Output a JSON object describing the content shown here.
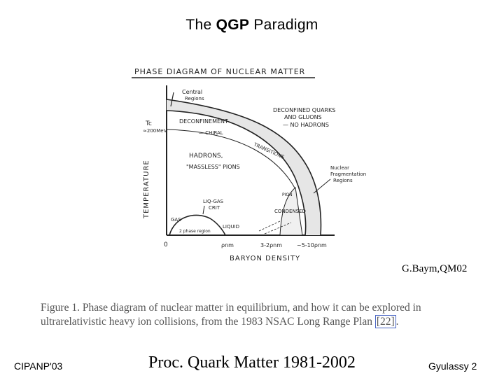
{
  "slide": {
    "title_pre": "The ",
    "title_bold": "QGP",
    "title_post": " Paradigm"
  },
  "diagram": {
    "heading": "PHASE DIAGRAM OF NUCLEAR MATTER",
    "y_axis_label": "TEMPERATURE",
    "x_axis_label": "BARYON DENSITY",
    "tc_label": "Tc",
    "tc_value": "≈200MeV",
    "origin_label": "0",
    "x_tick_1": "ρnm",
    "x_tick_2": "3-2ρnm",
    "x_tick_3": "~5-10ρnm",
    "central_regions_1": "Central",
    "central_regions_2": "Regions",
    "deconfined_1": "DECONFINED QUARKS",
    "deconfined_2": "AND GLUONS",
    "deconfined_3": "— NO HADRONS",
    "deconfinement_1": "DECONFINEMENT",
    "deconfinement_2": "— CHIRAL",
    "deconfinement_3": "TRANSITIONS",
    "hadrons_1": "HADRONS,",
    "hadrons_2": "\"MASSLESS\" PIONS",
    "frag_1": "Nuclear",
    "frag_2": "Fragmentation",
    "frag_3": "Regions",
    "pion_1": "PION",
    "pion_2": "CONDENSED",
    "liq_gas_1": "LIQ-GAS",
    "liq_gas_2": "CRIT",
    "gas": "GAS",
    "liquid": "LIQUID",
    "two_phase": "2 phase region"
  },
  "credit": "G.Baym,QM02",
  "caption": {
    "text": "Figure 1.  Phase diagram of nuclear matter in equilibrium, and how it can be explored in ultrarelativistic heavy ion collisions, from the 1983 NSAC Long Range Plan ",
    "ref": "[22]",
    "end": "."
  },
  "footer": {
    "left": "CIPANP'03",
    "center": "Proc. Quark Matter 1981-2002",
    "right": "Gyulassy  2"
  }
}
